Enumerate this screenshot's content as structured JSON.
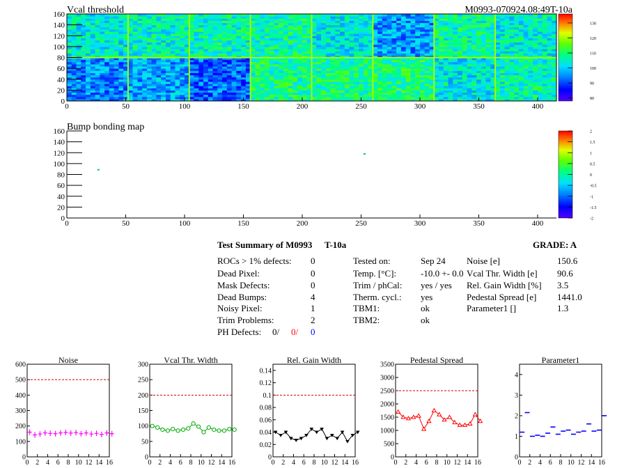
{
  "colors": {
    "red": "#ff0000",
    "blue": "#0000ff",
    "noise": "#ff00ff",
    "vcal": "#00aa00",
    "gain": "#000000",
    "ped": "#ff0000",
    "p1": "#0000ff",
    "ref": "#cc0000"
  },
  "header": {
    "title": "Vcal threshold",
    "module_id": "M0993-070924.08:49T-10a"
  },
  "bump": {
    "title": "Bump bonding map"
  },
  "summary": {
    "title": "Test Summary of M0993",
    "test": "T-10a",
    "grade": "GRADE:  A",
    "defects": [
      {
        "label": "ROCs > 1% defects:",
        "value": "0"
      },
      {
        "label": "Dead Pixel:",
        "value": "0"
      },
      {
        "label": "Mask Defects:",
        "value": "0"
      },
      {
        "label": "Dead Bumps:",
        "value": "4"
      },
      {
        "label": "Noisy Pixel:",
        "value": "1"
      },
      {
        "label": "Trim Problems:",
        "value": "2"
      }
    ],
    "ph_label": "PH Defects:",
    "ph_black": "0/",
    "ph_red": "0/",
    "ph_blue": "0",
    "conditions": [
      {
        "label": "Tested on:",
        "value": "Sep 24"
      },
      {
        "label": "Temp. [°C]:",
        "value": "-10.0 +- 0.0"
      },
      {
        "label": "Trim / phCal:",
        "value": "yes / yes"
      },
      {
        "label": "Therm. cycl.:",
        "value": "yes"
      },
      {
        "label": "TBM1:",
        "value": "ok"
      },
      {
        "label": "TBM2:",
        "value": "ok"
      }
    ],
    "results": [
      {
        "label": "Noise [e]",
        "value": "150.6"
      },
      {
        "label": "Vcal Thr. Width [e]",
        "value": "90.6"
      },
      {
        "label": "Rel. Gain Width [%]",
        "value": "3.5"
      },
      {
        "label": "Pedestal Spread [e]",
        "value": "1441.0"
      },
      {
        "label": "Parameter1 []",
        "value": "1.3"
      }
    ]
  },
  "chart_data": [
    {
      "type": "heatmap",
      "title": "Vcal threshold",
      "xlim": [
        0,
        416
      ],
      "ylim": [
        0,
        160
      ],
      "x_ticks": [
        "0",
        "50",
        "100",
        "150",
        "200",
        "250",
        "300",
        "350",
        "400"
      ],
      "y_ticks": [
        "0",
        "20",
        "40",
        "60",
        "80",
        "100",
        "120",
        "140",
        "160"
      ],
      "z_ticks": [
        "80",
        "90",
        "100",
        "110",
        "120",
        "130"
      ],
      "zlim": [
        78,
        136
      ],
      "roc_means_top": [
        104,
        105,
        106,
        107,
        103,
        96,
        106,
        104
      ],
      "roc_means_bottom": [
        95,
        97,
        92,
        108,
        108,
        109,
        103,
        106
      ]
    },
    {
      "type": "heatmap",
      "title": "Bump bonding map",
      "xlim": [
        0,
        416
      ],
      "ylim": [
        0,
        160
      ],
      "x_ticks": [
        "0",
        "50",
        "100",
        "150",
        "200",
        "250",
        "300",
        "350",
        "400"
      ],
      "y_ticks": [
        "0",
        "20",
        "40",
        "60",
        "80",
        "100",
        "120",
        "140",
        "160"
      ],
      "z_ticks": [
        "-2",
        "-1.5",
        "-1",
        "-0.5",
        "0",
        "0.5",
        "1",
        "1.5",
        "2"
      ],
      "zlim": [
        -2,
        2
      ],
      "points": [
        {
          "x": 26,
          "y": 90
        },
        {
          "x": 252,
          "y": 119
        }
      ]
    },
    {
      "type": "scatter",
      "title": "Noise",
      "x_ticks": [
        "0",
        "2",
        "4",
        "6",
        "8",
        "10",
        "12",
        "14",
        "16"
      ],
      "xlim": [
        0,
        16
      ],
      "y_ticks": [
        "0",
        "100",
        "200",
        "300",
        "400",
        "500",
        "600"
      ],
      "ylim": [
        0,
        600
      ],
      "reference": 500,
      "marker": "plus",
      "x": [
        0,
        1,
        2,
        3,
        4,
        5,
        6,
        7,
        8,
        9,
        10,
        11,
        12,
        13,
        14,
        15,
        16
      ],
      "values": [
        160,
        142,
        148,
        155,
        152,
        150,
        155,
        158,
        154,
        157,
        150,
        155,
        148,
        152,
        145,
        155,
        150
      ]
    },
    {
      "type": "scatter",
      "title": "Vcal Thr. Width",
      "x_ticks": [
        "0",
        "2",
        "4",
        "6",
        "8",
        "10",
        "12",
        "14",
        "16"
      ],
      "xlim": [
        0,
        16
      ],
      "y_ticks": [
        "0",
        "50",
        "100",
        "150",
        "200",
        "250",
        "300"
      ],
      "ylim": [
        0,
        300
      ],
      "reference": 200,
      "marker": "circle",
      "x": [
        0,
        1,
        2,
        3,
        4,
        5,
        6,
        7,
        8,
        9,
        10,
        11,
        12,
        13,
        14,
        15,
        16
      ],
      "values": [
        100,
        95,
        88,
        85,
        90,
        85,
        88,
        92,
        108,
        98,
        80,
        95,
        88,
        85,
        85,
        90,
        88
      ]
    },
    {
      "type": "scatter",
      "title": "Rel. Gain Width",
      "x_ticks": [
        "0",
        "2",
        "4",
        "6",
        "8",
        "10",
        "12",
        "14",
        "16"
      ],
      "xlim": [
        0,
        16
      ],
      "y_ticks": [
        "0",
        "0.02",
        "0.04",
        "0.06",
        "0.08",
        "0.1",
        "0.12",
        "0.14"
      ],
      "ylim": [
        0,
        0.15
      ],
      "reference": 0.1,
      "marker": "triangle-down",
      "x": [
        0,
        1,
        2,
        3,
        4,
        5,
        6,
        7,
        8,
        9,
        10,
        11,
        12,
        13,
        14,
        15,
        16
      ],
      "values": [
        0.04,
        0.035,
        0.04,
        0.03,
        0.027,
        0.03,
        0.035,
        0.045,
        0.04,
        0.045,
        0.03,
        0.035,
        0.03,
        0.04,
        0.025,
        0.035,
        0.04
      ]
    },
    {
      "type": "scatter",
      "title": "Pedestal Spread",
      "x_ticks": [
        "0",
        "2",
        "4",
        "6",
        "8",
        "10",
        "12",
        "14",
        "16"
      ],
      "xlim": [
        0,
        16
      ],
      "y_ticks": [
        "0",
        "500",
        "1000",
        "1500",
        "2000",
        "2500",
        "3000",
        "3500"
      ],
      "ylim": [
        0,
        3500
      ],
      "reference": 2500,
      "marker": "triangle-up",
      "x": [
        0,
        1,
        2,
        3,
        4,
        5,
        6,
        7,
        8,
        9,
        10,
        11,
        12,
        13,
        14,
        15,
        16
      ],
      "values": [
        1700,
        1500,
        1450,
        1500,
        1550,
        1050,
        1350,
        1750,
        1600,
        1400,
        1500,
        1300,
        1200,
        1200,
        1250,
        1600,
        1350
      ]
    },
    {
      "type": "scatter",
      "title": "Parameter1",
      "x_ticks": [
        "0",
        "2",
        "4",
        "6",
        "8",
        "10",
        "12",
        "14",
        "16"
      ],
      "xlim": [
        0,
        16
      ],
      "y_ticks": [
        "0",
        "1",
        "2",
        "3",
        "4"
      ],
      "ylim": [
        0,
        4.5
      ],
      "marker": "hbar",
      "x": [
        0,
        1,
        2,
        3,
        4,
        5,
        6,
        7,
        8,
        9,
        10,
        11,
        12,
        13,
        14,
        15,
        16
      ],
      "values": [
        1.2,
        2.15,
        1.0,
        1.05,
        1.0,
        1.15,
        1.45,
        1.1,
        1.25,
        1.3,
        1.1,
        1.2,
        1.25,
        1.6,
        1.25,
        1.3,
        2.0
      ]
    }
  ]
}
